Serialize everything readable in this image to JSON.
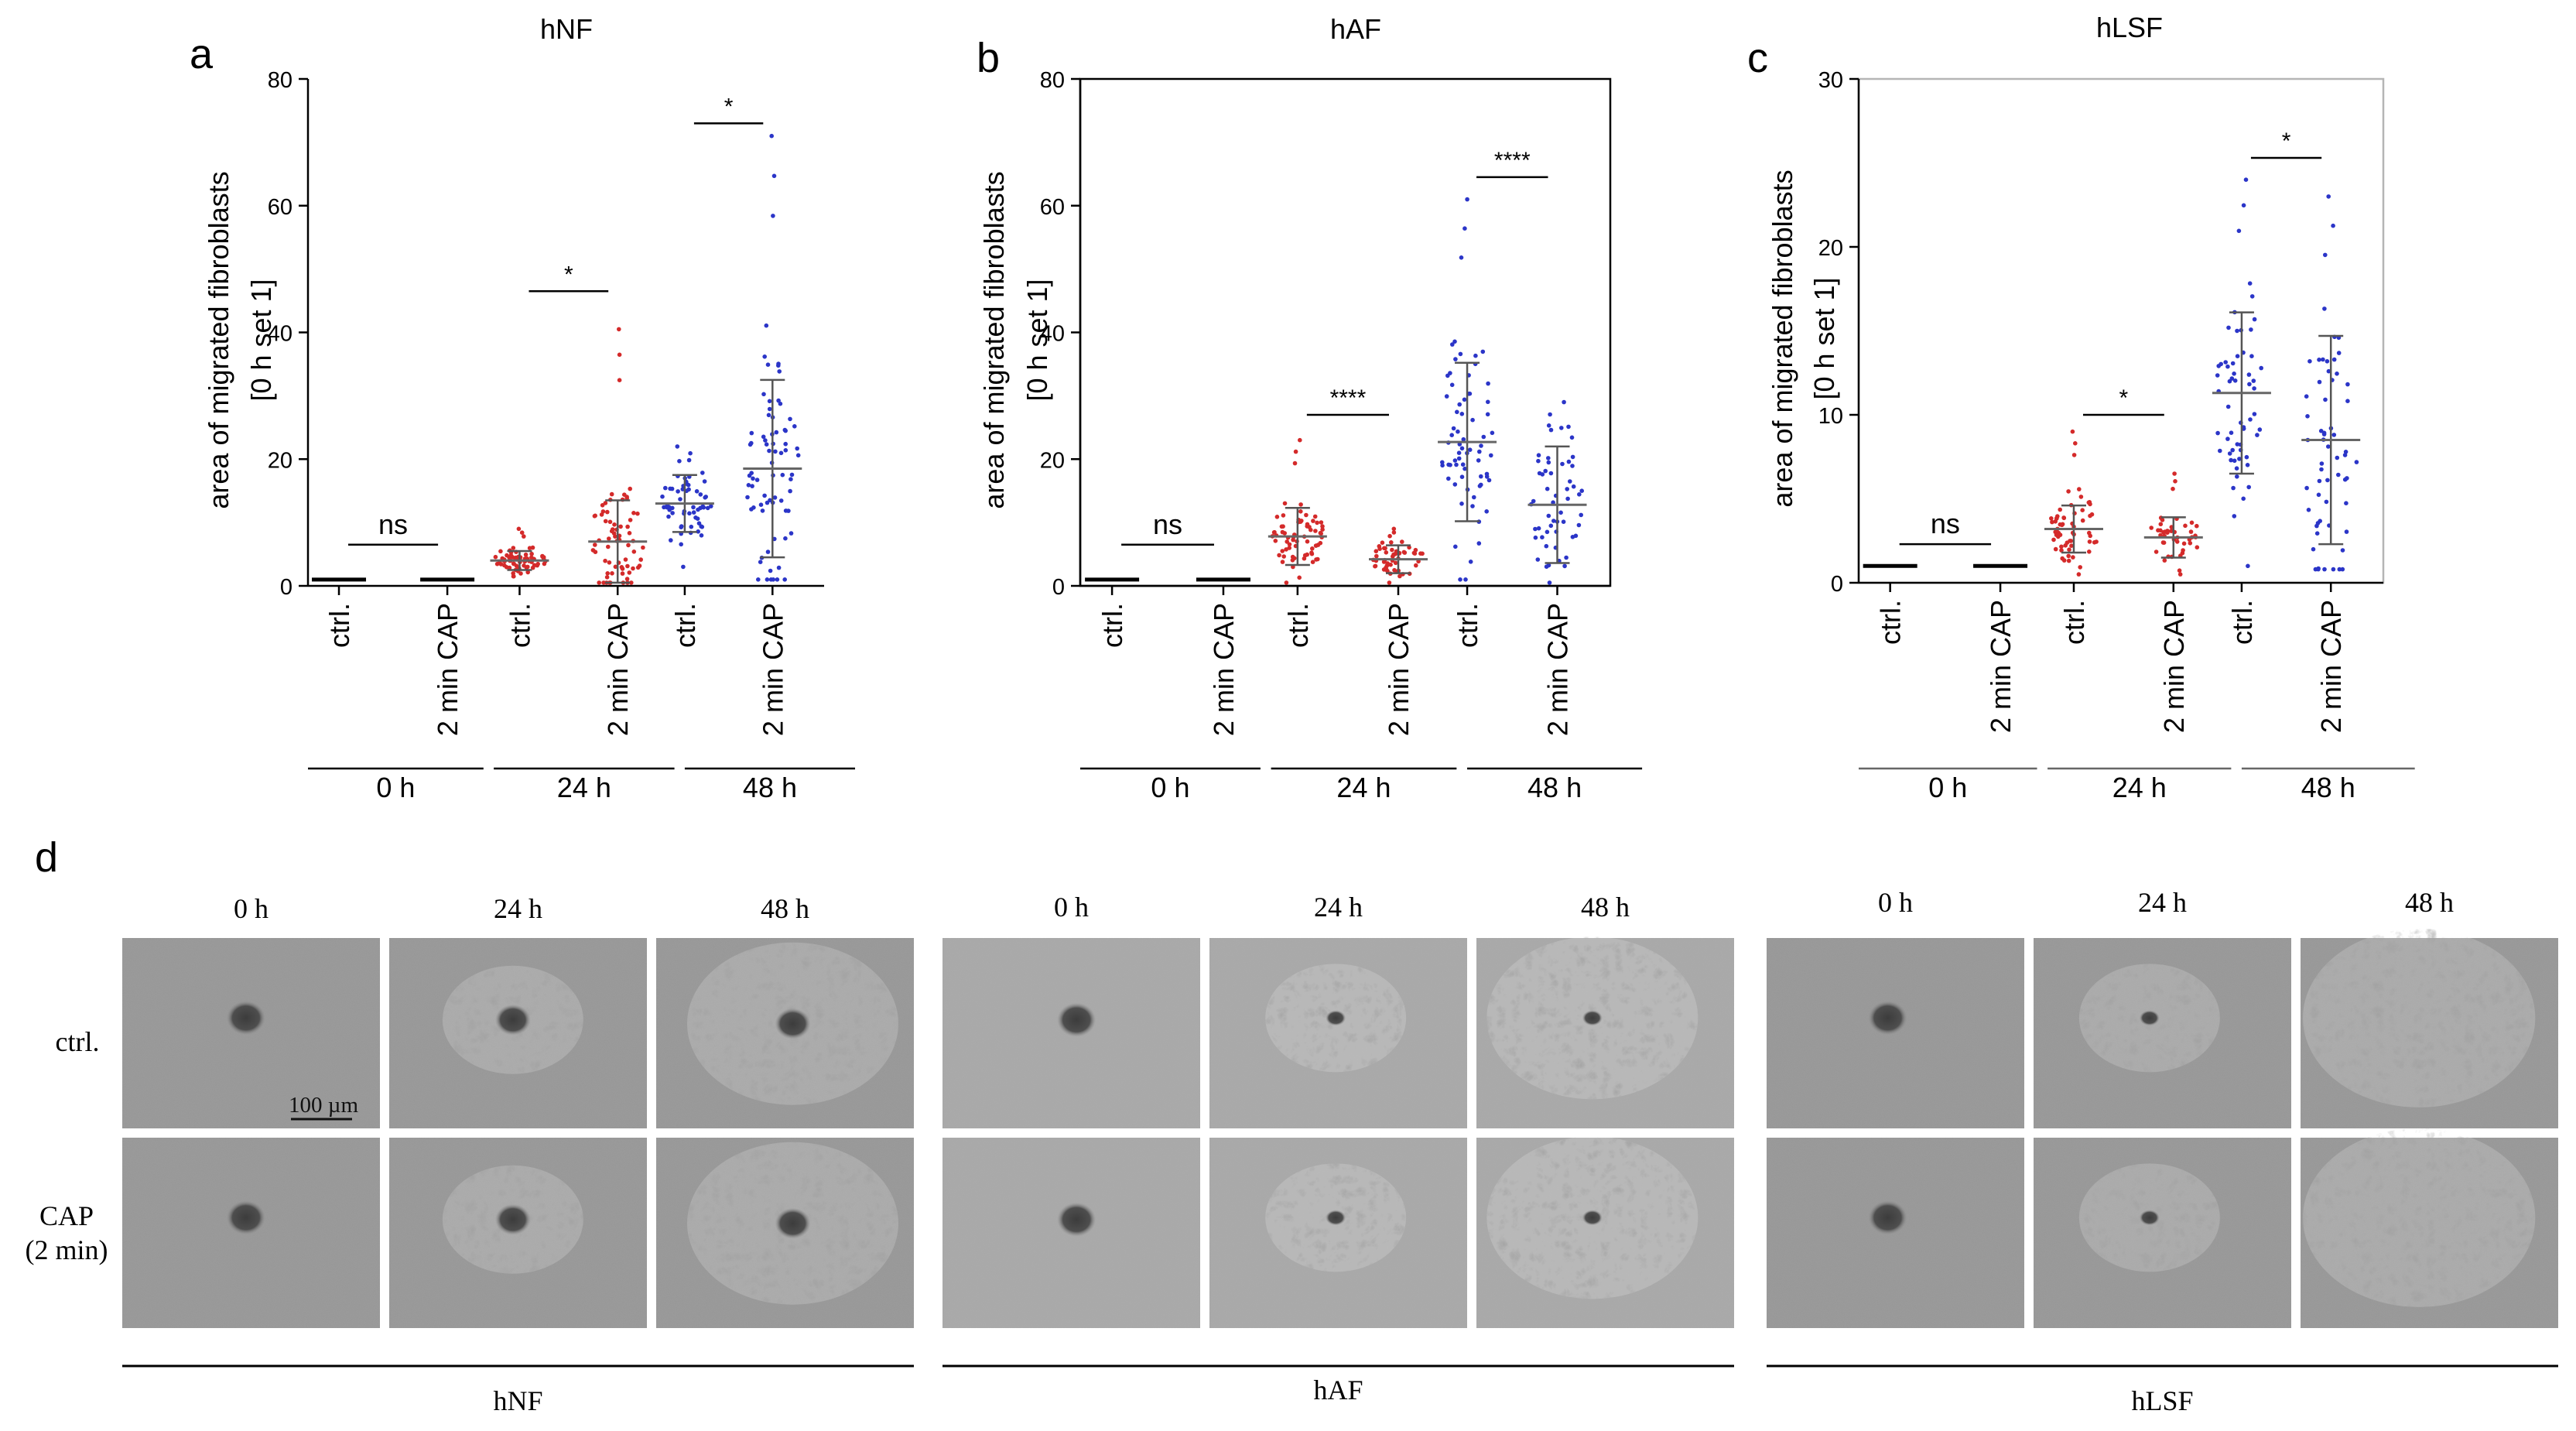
{
  "panel_letters": [
    "a",
    "b",
    "c",
    "d"
  ],
  "y_label_line1": "area of migrated fibroblasts",
  "y_label_line2": "[0 h set 1]",
  "x_categories": [
    "ctrl.",
    "2 min CAP",
    "ctrl.",
    "2 min CAP",
    "ctrl.",
    "2 min CAP"
  ],
  "timepoint_labels": [
    "0 h",
    "24 h",
    "48 h"
  ],
  "chart_data": [
    {
      "type": "scatter",
      "title": "hNF",
      "ylim": [
        0,
        80
      ],
      "yticks": [
        0,
        20,
        40,
        60,
        80
      ],
      "groups": [
        {
          "category": "ctrl.",
          "timepoint": "0 h",
          "color": "#000000",
          "mean": 1,
          "sd": 0,
          "n": 0
        },
        {
          "category": "2 min CAP",
          "timepoint": "0 h",
          "color": "#000000",
          "mean": 1,
          "sd": 0,
          "n": 0
        },
        {
          "category": "ctrl.",
          "timepoint": "24 h",
          "color": "#d42a2a",
          "mean": 4,
          "sd": 1.5,
          "n": 70,
          "min": 1.5,
          "max": 9
        },
        {
          "category": "2 min CAP",
          "timepoint": "24 h",
          "color": "#d42a2a",
          "mean": 7,
          "sd": 6.5,
          "n": 70,
          "min": 0.5,
          "max": 40.5
        },
        {
          "category": "ctrl.",
          "timepoint": "48 h",
          "color": "#2b35c8",
          "mean": 13,
          "sd": 4.5,
          "n": 60,
          "min": 3,
          "max": 22
        },
        {
          "category": "2 min CAP",
          "timepoint": "48 h",
          "color": "#2b35c8",
          "mean": 18.5,
          "sd": 14,
          "n": 75,
          "min": 1,
          "max": 71
        }
      ],
      "significance": [
        {
          "label": "ns",
          "pair": [
            0,
            1
          ],
          "y": 6.5
        },
        {
          "label": "*",
          "pair": [
            2,
            3
          ],
          "y": 46.5
        },
        {
          "label": "*",
          "pair": [
            4,
            5
          ],
          "y": 73
        }
      ]
    },
    {
      "type": "scatter",
      "title": "hAF",
      "ylim": [
        0,
        80
      ],
      "yticks": [
        0,
        20,
        40,
        60,
        80
      ],
      "groups": [
        {
          "category": "ctrl.",
          "timepoint": "0 h",
          "color": "#000000",
          "mean": 1,
          "sd": 0,
          "n": 0
        },
        {
          "category": "2 min CAP",
          "timepoint": "0 h",
          "color": "#000000",
          "mean": 1,
          "sd": 0,
          "n": 0
        },
        {
          "category": "ctrl.",
          "timepoint": "24 h",
          "color": "#d42a2a",
          "mean": 7.8,
          "sd": 4.5,
          "n": 70,
          "min": 0.5,
          "max": 23
        },
        {
          "category": "2 min CAP",
          "timepoint": "24 h",
          "color": "#d42a2a",
          "mean": 4.2,
          "sd": 2.2,
          "n": 55,
          "min": 0.5,
          "max": 9
        },
        {
          "category": "ctrl.",
          "timepoint": "48 h",
          "color": "#2b35c8",
          "mean": 22.7,
          "sd": 12.5,
          "n": 70,
          "min": 1,
          "max": 61
        },
        {
          "category": "2 min CAP",
          "timepoint": "48 h",
          "color": "#2b35c8",
          "mean": 12.8,
          "sd": 9.2,
          "n": 55,
          "min": 0.5,
          "max": 29
        }
      ],
      "significance": [
        {
          "label": "ns",
          "pair": [
            0,
            1
          ],
          "y": 6.5
        },
        {
          "label": "****",
          "pair": [
            2,
            3
          ],
          "y": 27
        },
        {
          "label": "****",
          "pair": [
            4,
            5
          ],
          "y": 64.5
        }
      ]
    },
    {
      "type": "scatter",
      "title": "hLSF",
      "ylim": [
        0,
        30
      ],
      "yticks": [
        0,
        10,
        20,
        30
      ],
      "groups": [
        {
          "category": "ctrl.",
          "timepoint": "0 h",
          "color": "#000000",
          "mean": 1,
          "sd": 0,
          "n": 0
        },
        {
          "category": "2 min CAP",
          "timepoint": "0 h",
          "color": "#000000",
          "mean": 1,
          "sd": 0,
          "n": 0
        },
        {
          "category": "ctrl.",
          "timepoint": "24 h",
          "color": "#d42a2a",
          "mean": 3.2,
          "sd": 1.4,
          "n": 60,
          "min": 0.5,
          "max": 9
        },
        {
          "category": "2 min CAP",
          "timepoint": "24 h",
          "color": "#d42a2a",
          "mean": 2.7,
          "sd": 1.2,
          "n": 45,
          "min": 0.5,
          "max": 6.5
        },
        {
          "category": "ctrl.",
          "timepoint": "48 h",
          "color": "#2b35c8",
          "mean": 11.3,
          "sd": 4.8,
          "n": 60,
          "min": 1,
          "max": 24
        },
        {
          "category": "2 min CAP",
          "timepoint": "48 h",
          "color": "#2b35c8",
          "mean": 8.5,
          "sd": 6.2,
          "n": 60,
          "min": 0.8,
          "max": 23
        }
      ],
      "significance": [
        {
          "label": "ns",
          "pair": [
            0,
            1
          ],
          "y": 2.3
        },
        {
          "label": "*",
          "pair": [
            2,
            3
          ],
          "y": 10
        },
        {
          "label": "*",
          "pair": [
            4,
            5
          ],
          "y": 25.3
        }
      ]
    }
  ],
  "micrographs": {
    "groups": [
      "hNF",
      "hAF",
      "hLSF"
    ],
    "timepoints": [
      "0 h",
      "24 h",
      "48 h"
    ],
    "rows": [
      "ctrl.",
      "CAP",
      "(2 min)"
    ],
    "scale_bar": "100 µm"
  }
}
